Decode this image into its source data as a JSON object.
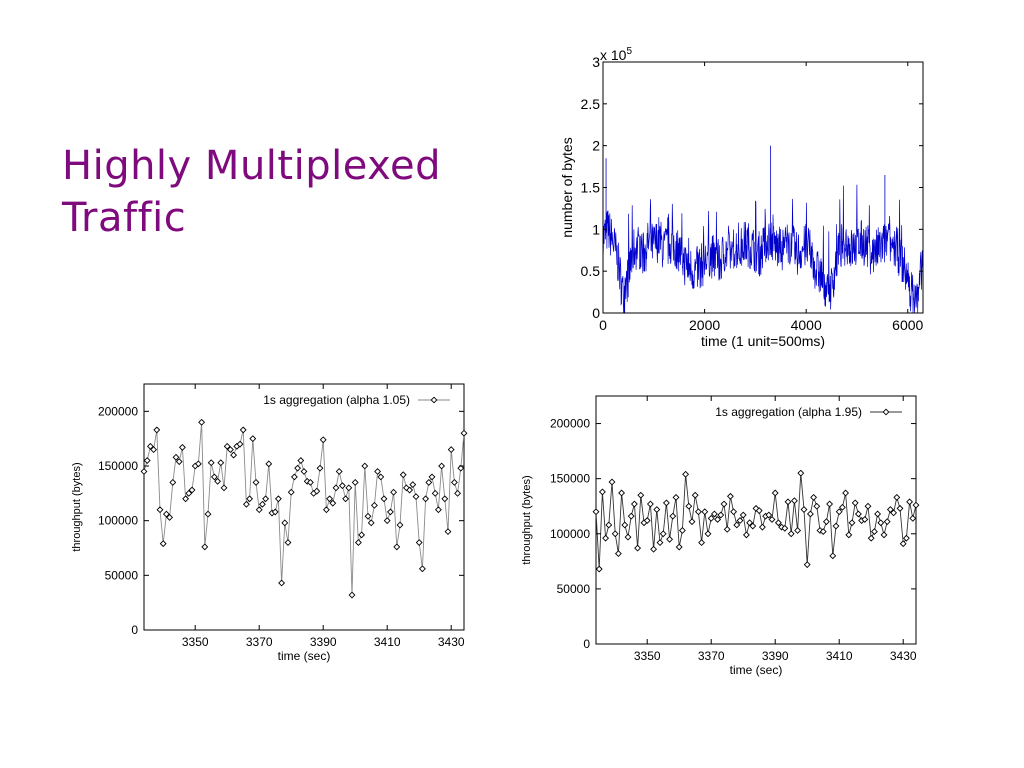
{
  "slide": {
    "title_line1": "Highly Multiplexed",
    "title_line2": "Traffic"
  },
  "chart_data": [
    {
      "id": "top",
      "type": "line",
      "xlabel": "time (1 unit=500ms)",
      "ylabel": "number of bytes",
      "y_multiplier": "x 10",
      "y_multiplier_exponent": "5",
      "xlim": [
        0,
        6300
      ],
      "ylim": [
        0,
        3
      ],
      "xticks": [
        0,
        2000,
        4000,
        6000
      ],
      "xtick_labels": [
        "0",
        "2000",
        "4000",
        "6000"
      ],
      "yticks": [
        0,
        0.5,
        1,
        1.5,
        2,
        2.5,
        3
      ],
      "ytick_labels": [
        "0",
        "0.5",
        "1",
        "1.5",
        "2",
        "2.5",
        "3"
      ],
      "series_color": "#0000cc",
      "grid": false,
      "note": "dense trace of about 6300 samples; values fluctuate mostly between 0.3 and 1.3 with dips near 0 around t=400, 4500 and 6100-6300 and occasional spikes up to about 2",
      "x": [
        0,
        100,
        200,
        300,
        400,
        500,
        600,
        700,
        800,
        900,
        1000,
        1100,
        1200,
        1300,
        1400,
        1500,
        1600,
        1700,
        1800,
        1900,
        2000,
        2100,
        2200,
        2300,
        2400,
        2500,
        2600,
        2700,
        2800,
        2900,
        3000,
        3100,
        3200,
        3300,
        3400,
        3500,
        3600,
        3700,
        3800,
        3900,
        4000,
        4100,
        4200,
        4300,
        4400,
        4500,
        4600,
        4700,
        4800,
        4900,
        5000,
        5100,
        5200,
        5300,
        5400,
        5500,
        5600,
        5700,
        5800,
        5900,
        6000,
        6100,
        6200,
        6300
      ],
      "y": [
        0.9,
        1.0,
        0.85,
        0.6,
        0.2,
        0.45,
        0.75,
        0.8,
        0.7,
        0.85,
        0.8,
        0.9,
        0.75,
        0.85,
        0.8,
        0.75,
        0.6,
        0.55,
        0.5,
        0.55,
        0.6,
        0.7,
        0.65,
        0.6,
        0.75,
        0.7,
        0.8,
        0.75,
        0.85,
        0.8,
        0.75,
        0.7,
        0.85,
        0.9,
        0.8,
        0.75,
        0.8,
        0.85,
        0.7,
        0.75,
        0.8,
        0.7,
        0.5,
        0.45,
        0.3,
        0.3,
        0.65,
        0.8,
        0.85,
        0.75,
        0.8,
        0.85,
        0.8,
        0.7,
        0.75,
        0.8,
        0.85,
        0.8,
        0.75,
        0.6,
        0.4,
        0.2,
        0.15,
        0.7
      ],
      "spikes": [
        {
          "x": 60,
          "y": 1.85
        },
        {
          "x": 3300,
          "y": 2.0
        },
        {
          "x": 5550,
          "y": 1.65
        }
      ]
    },
    {
      "id": "left",
      "type": "line",
      "xlabel": "time (sec)",
      "ylabel": "throughput (bytes)",
      "legend": "1s aggregation (alpha 1.05)",
      "legend_position": "top-right",
      "xlim": [
        3334,
        3434
      ],
      "ylim": [
        0,
        225000
      ],
      "xticks": [
        3350,
        3370,
        3390,
        3410,
        3430
      ],
      "xtick_labels": [
        "3350",
        "3370",
        "3390",
        "3410",
        "3430"
      ],
      "yticks": [
        0,
        50000,
        100000,
        150000,
        200000
      ],
      "ytick_labels": [
        "0",
        "50000",
        "100000",
        "150000",
        "200000"
      ],
      "x_start": 3334,
      "x_step": 1,
      "values": [
        145000,
        155000,
        168000,
        165000,
        183000,
        110000,
        79000,
        106000,
        103000,
        135000,
        158000,
        154000,
        167000,
        120000,
        125000,
        128000,
        150000,
        152000,
        190000,
        76000,
        106000,
        153000,
        140000,
        136000,
        153000,
        130000,
        168000,
        165000,
        160000,
        168000,
        170000,
        183000,
        115000,
        120000,
        175000,
        135000,
        110000,
        115000,
        120000,
        152000,
        107000,
        108000,
        120000,
        43000,
        98000,
        80000,
        126000,
        140000,
        148000,
        155000,
        145000,
        136000,
        135000,
        125000,
        127000,
        148000,
        174000,
        110000,
        120000,
        116000,
        130000,
        145000,
        132000,
        120000,
        130000,
        32000,
        135000,
        80000,
        87000,
        150000,
        104000,
        98000,
        114000,
        145000,
        140000,
        120000,
        100000,
        108000,
        126000,
        76000,
        96000,
        142000,
        130000,
        128000,
        133000,
        122000,
        80000,
        56000,
        120000,
        135000,
        140000,
        125000,
        110000,
        150000,
        120000,
        90000,
        165000,
        135000,
        125000,
        148000,
        180000
      ]
    },
    {
      "id": "right",
      "type": "line",
      "xlabel": "time (sec)",
      "ylabel": "throughput (bytes)",
      "legend": "1s aggregation (alpha 1.95)",
      "legend_position": "top-right",
      "xlim": [
        3334,
        3434
      ],
      "ylim": [
        0,
        225000
      ],
      "xticks": [
        3350,
        3370,
        3390,
        3410,
        3430
      ],
      "xtick_labels": [
        "3350",
        "3370",
        "3390",
        "3410",
        "3430"
      ],
      "yticks": [
        0,
        50000,
        100000,
        150000,
        200000
      ],
      "ytick_labels": [
        "0",
        "50000",
        "100000",
        "150000",
        "200000"
      ],
      "x_start": 3334,
      "x_step": 1,
      "values": [
        120000,
        68000,
        138000,
        96000,
        108000,
        147000,
        100000,
        82000,
        137000,
        108000,
        97000,
        116000,
        127000,
        87000,
        135000,
        110000,
        112000,
        127000,
        86000,
        122000,
        92000,
        100000,
        128000,
        95000,
        116000,
        133000,
        88000,
        103000,
        154000,
        125000,
        111000,
        135000,
        120000,
        92000,
        120000,
        100000,
        114000,
        118000,
        113000,
        117000,
        127000,
        104000,
        134000,
        120000,
        108000,
        112000,
        117000,
        99000,
        110000,
        107000,
        123000,
        121000,
        106000,
        116000,
        117000,
        113000,
        137000,
        110000,
        106000,
        105000,
        129000,
        100000,
        130000,
        103000,
        155000,
        122000,
        72000,
        118000,
        133000,
        125000,
        103000,
        102000,
        111000,
        127000,
        80000,
        107000,
        120000,
        124000,
        137000,
        99000,
        110000,
        128000,
        118000,
        112000,
        113000,
        125000,
        96000,
        102000,
        118000,
        110000,
        99000,
        111000,
        122000,
        119000,
        133000,
        123000,
        91000,
        96000,
        129000,
        114000,
        126000
      ]
    }
  ]
}
